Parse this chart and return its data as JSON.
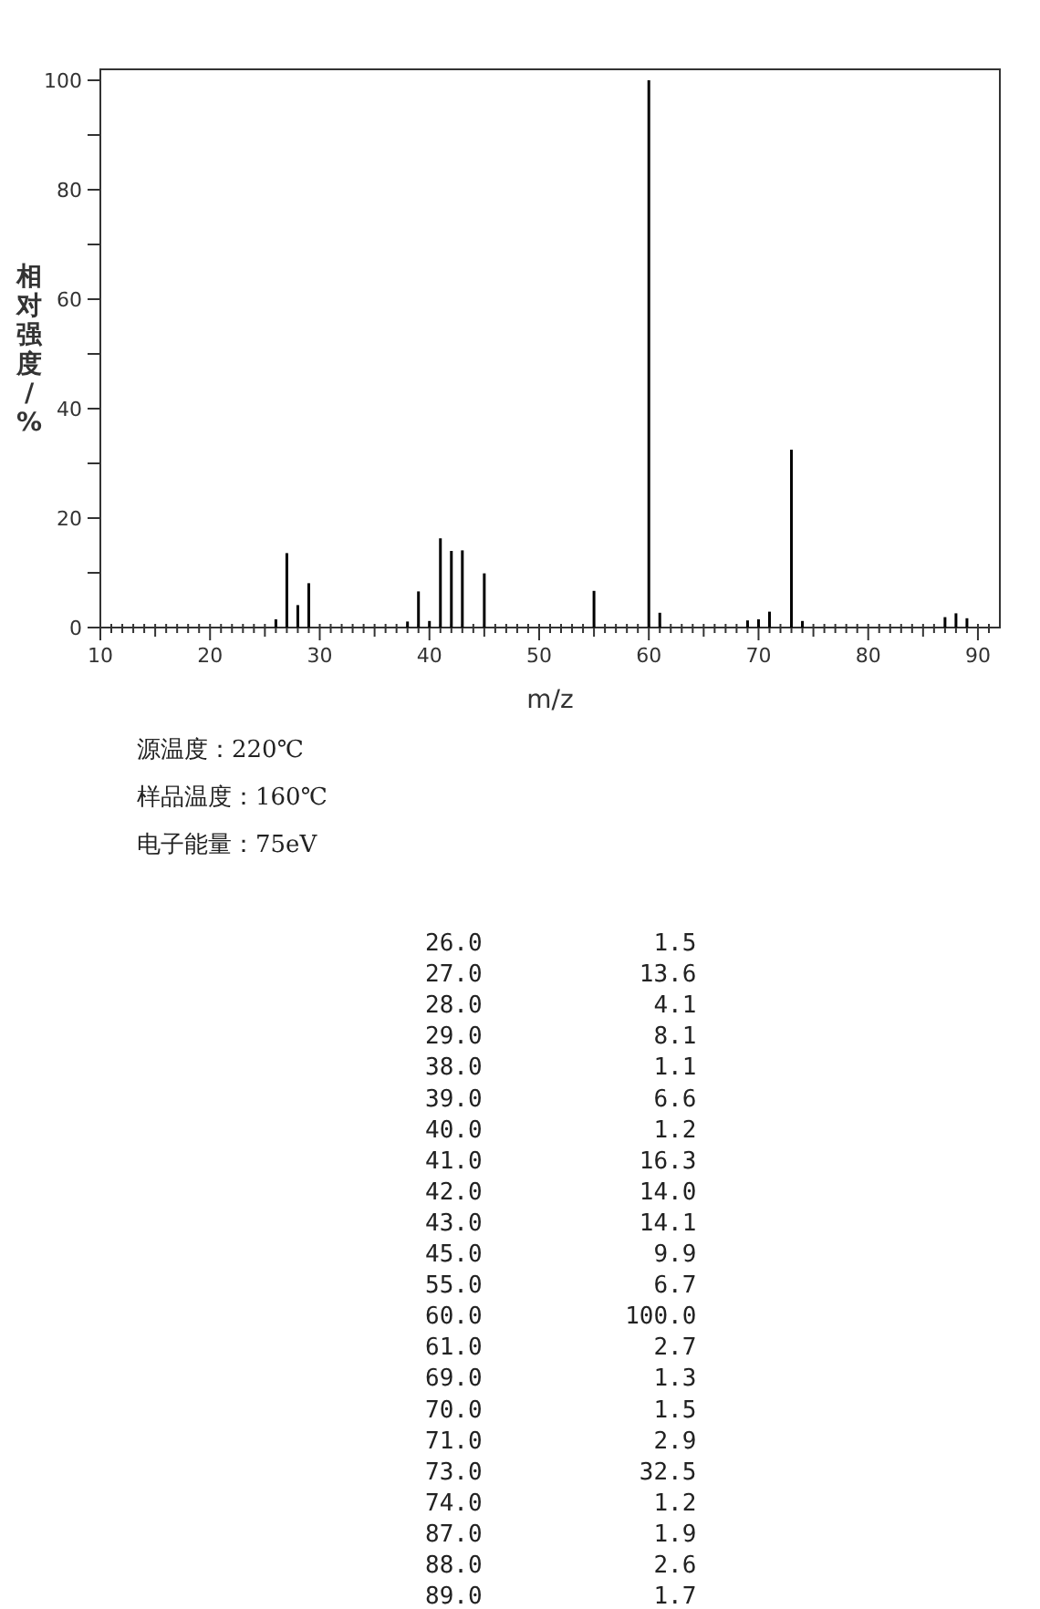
{
  "chart_data": {
    "type": "bar",
    "xlabel": "m/z",
    "ylabel": "相对强度/%",
    "x": [
      26,
      27,
      28,
      29,
      38,
      39,
      40,
      41,
      42,
      43,
      45,
      55,
      60,
      61,
      69,
      70,
      71,
      73,
      74,
      87,
      88,
      89
    ],
    "values": [
      1.5,
      13.6,
      4.1,
      8.1,
      1.1,
      6.6,
      1.2,
      16.3,
      14.0,
      14.1,
      9.9,
      6.7,
      100.0,
      2.7,
      1.3,
      1.5,
      2.9,
      32.5,
      1.2,
      1.9,
      2.6,
      1.7
    ],
    "color": "#000000",
    "xlim": [
      10,
      92
    ],
    "ylim": [
      0,
      102
    ],
    "xticks": [
      10,
      {
        "value": 11,
        "label": null
      },
      {
        "value": 12,
        "label": null
      },
      {
        "value": 13,
        "label": null
      },
      {
        "value": 14,
        "label": null
      },
      {
        "value": 15,
        "label": null
      },
      {
        "value": 16,
        "label": null
      },
      {
        "value": 17,
        "label": null
      },
      {
        "value": 18,
        "label": null
      },
      {
        "value": 19,
        "label": null
      },
      20,
      {
        "value": 21,
        "label": null
      },
      {
        "value": 22,
        "label": null
      },
      {
        "value": 23,
        "label": null
      },
      {
        "value": 24,
        "label": null
      },
      {
        "value": 25,
        "label": null
      },
      {
        "value": 26,
        "label": null
      },
      {
        "value": 27,
        "label": null
      },
      {
        "value": 28,
        "label": null
      },
      {
        "value": 29,
        "label": null
      },
      30,
      {
        "value": 31,
        "label": null
      },
      {
        "value": 32,
        "label": null
      },
      {
        "value": 33,
        "label": null
      },
      {
        "value": 34,
        "label": null
      },
      {
        "value": 35,
        "label": null
      },
      {
        "value": 36,
        "label": null
      },
      {
        "value": 37,
        "label": null
      },
      {
        "value": 38,
        "label": null
      },
      {
        "value": 39,
        "label": null
      },
      40,
      {
        "value": 41,
        "label": null
      },
      {
        "value": 42,
        "label": null
      },
      {
        "value": 43,
        "label": null
      },
      {
        "value": 44,
        "label": null
      },
      {
        "value": 45,
        "label": null
      },
      {
        "value": 46,
        "label": null
      },
      {
        "value": 47,
        "label": null
      },
      {
        "value": 48,
        "label": null
      },
      {
        "value": 49,
        "label": null
      },
      50,
      {
        "value": 51,
        "label": null
      },
      {
        "value": 52,
        "label": null
      },
      {
        "value": 53,
        "label": null
      },
      {
        "value": 54,
        "label": null
      },
      {
        "value": 55,
        "label": null
      },
      {
        "value": 56,
        "label": null
      },
      {
        "value": 57,
        "label": null
      },
      {
        "value": 58,
        "label": null
      },
      {
        "value": 59,
        "label": null
      },
      60,
      {
        "value": 61,
        "label": null
      },
      {
        "value": 62,
        "label": null
      },
      {
        "value": 63,
        "label": null
      },
      {
        "value": 64,
        "label": null
      },
      {
        "value": 65,
        "label": null
      },
      {
        "value": 66,
        "label": null
      },
      {
        "value": 67,
        "label": null
      },
      {
        "value": 68,
        "label": null
      },
      {
        "value": 69,
        "label": null
      },
      70,
      {
        "value": 71,
        "label": null
      },
      {
        "value": 72,
        "label": null
      },
      {
        "value": 73,
        "label": null
      },
      {
        "value": 74,
        "label": null
      },
      {
        "value": 75,
        "label": null
      },
      {
        "value": 76,
        "label": null
      },
      {
        "value": 77,
        "label": null
      },
      {
        "value": 78,
        "label": null
      },
      {
        "value": 79,
        "label": null
      },
      80,
      {
        "value": 81,
        "label": null
      },
      {
        "value": 82,
        "label": null
      },
      {
        "value": 83,
        "label": null
      },
      {
        "value": 84,
        "label": null
      },
      {
        "value": 85,
        "label": null
      },
      {
        "value": 86,
        "label": null
      },
      {
        "value": 87,
        "label": null
      },
      {
        "value": 88,
        "label": null
      },
      {
        "value": 89,
        "label": null
      },
      90,
      {
        "value": 91,
        "label": null
      }
    ],
    "yticks": [
      0,
      {
        "value": 10,
        "label": null
      },
      20,
      {
        "value": 30,
        "label": null
      },
      40,
      {
        "value": 50,
        "label": null
      },
      60,
      {
        "value": 70,
        "label": null
      },
      80,
      {
        "value": 90,
        "label": null
      },
      100
    ],
    "annotations": [
      "源温度：220℃",
      "样品温度：160℃",
      "电子能量：75eV",
      "26.0            1.5",
      "27.0           13.6",
      "28.0            4.1",
      "29.0            8.1",
      "38.0            1.1",
      "39.0            6.6",
      "40.0            1.2",
      "41.0           16.3",
      "42.0           14.0",
      "43.0           14.1",
      "45.0            9.9",
      "55.0            6.7",
      "60.0          100.0",
      "61.0            2.7",
      "69.0            1.3",
      "70.0            1.5",
      "71.0            2.9",
      "73.0           32.5",
      "74.0            1.2",
      "87.0            1.9",
      "88.0            2.6",
      "89.0            1.7"
    ]
  }
}
